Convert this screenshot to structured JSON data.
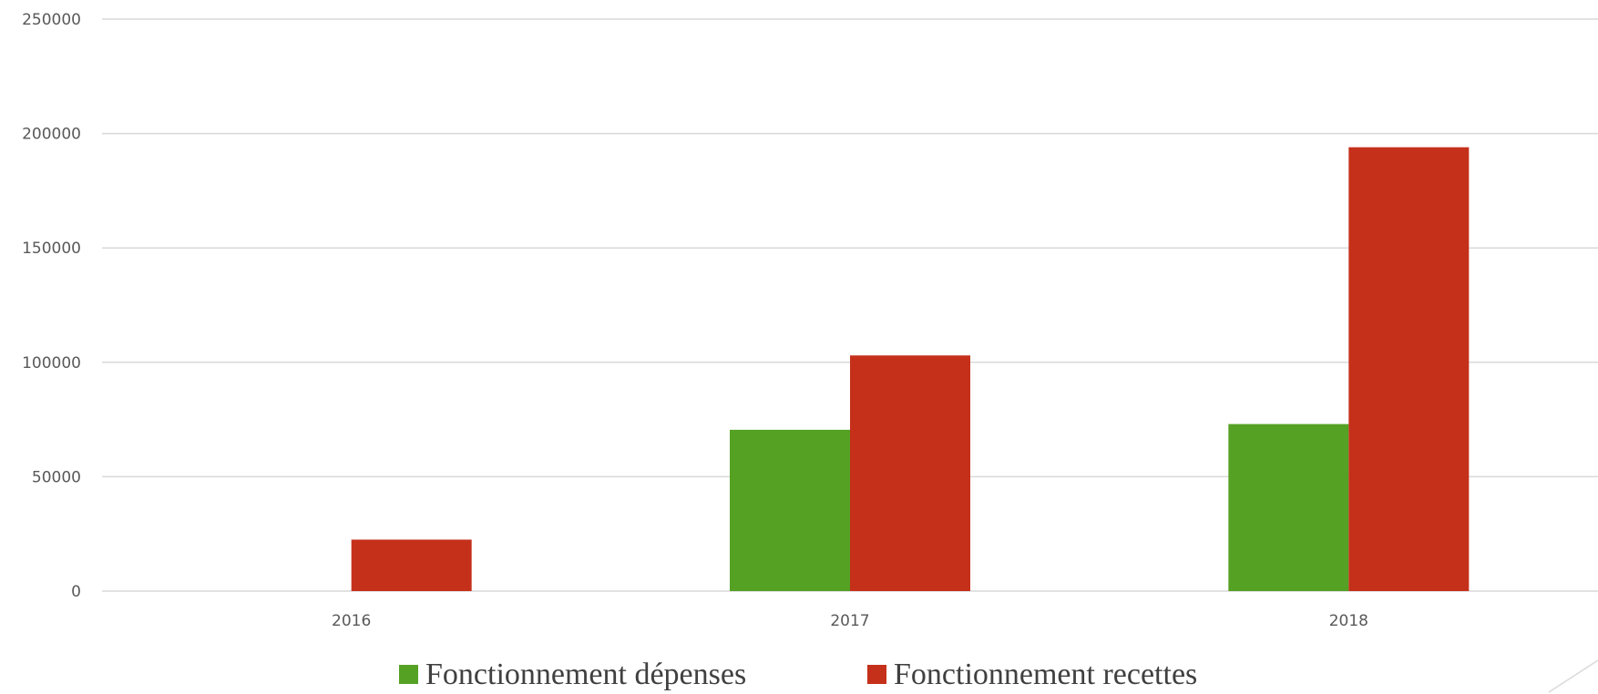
{
  "chart_data": {
    "type": "bar",
    "categories": [
      "2016",
      "2017",
      "2018"
    ],
    "series": [
      {
        "name": "Fonctionnement dépenses",
        "color": "#55a124",
        "values": [
          0,
          70500,
          73000
        ]
      },
      {
        "name": "Fonctionnement recettes",
        "color": "#c5301b",
        "values": [
          22500,
          103000,
          194000
        ]
      }
    ],
    "ylim": [
      0,
      250000
    ],
    "yticks": [
      "0",
      "50000",
      "100000",
      "150000",
      "200000",
      "250000"
    ],
    "grid": true,
    "legend_position": "bottom"
  }
}
